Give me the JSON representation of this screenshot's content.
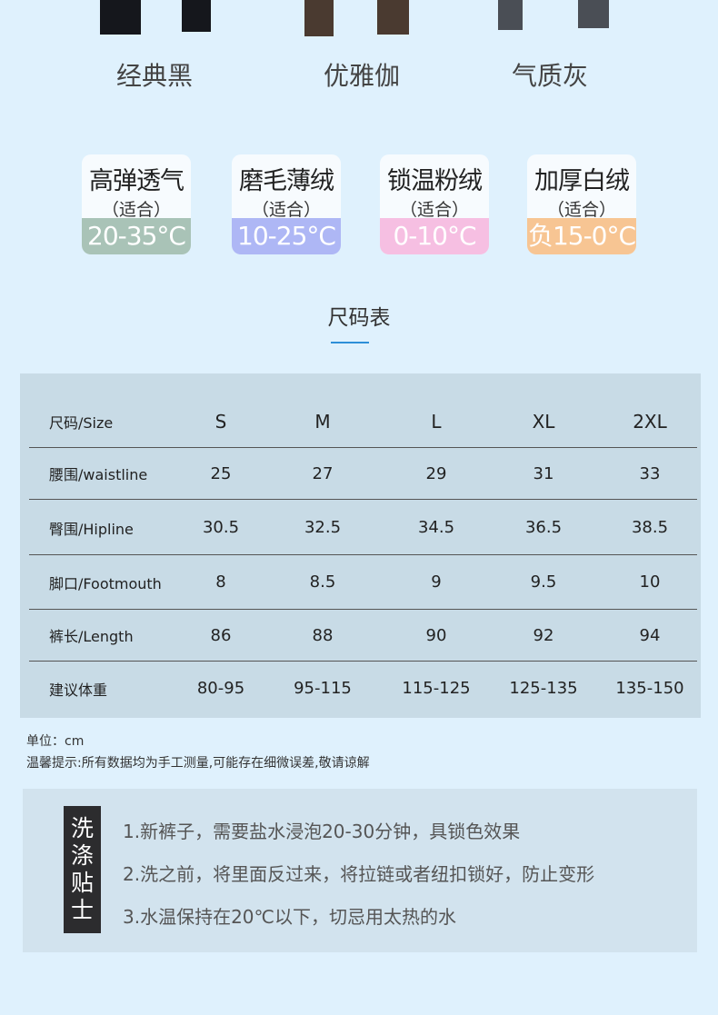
{
  "colors": {
    "background": "#dff1fd",
    "table_bg": "#c8dbe6",
    "accent": "#2d8fd8"
  },
  "variants": [
    {
      "name": "经典黑",
      "color": "#15171c"
    },
    {
      "name": "优雅伽",
      "color": "#4a3a30"
    },
    {
      "name": "气质灰",
      "color": "#4a4e55"
    }
  ],
  "fabrics": [
    {
      "title": "高弹透气",
      "sub": "（适合）",
      "range": "20-35°C",
      "color": "#a9c3b7"
    },
    {
      "title": "磨毛薄绒",
      "sub": "（适合）",
      "range": "10-25°C",
      "color": "#aeb7f5"
    },
    {
      "title": "锁温粉绒",
      "sub": "（适合）",
      "range": "0-10°C",
      "color": "#f6bfe2"
    },
    {
      "title": "加厚白绒",
      "sub": "（适合）",
      "range": "负15-0°C",
      "color": "#f7c593"
    }
  ],
  "size_chart": {
    "title": "尺码表",
    "rows": [
      {
        "label": "尺码/Size",
        "values": [
          "S",
          "M",
          "L",
          "XL",
          "2XL"
        ]
      },
      {
        "label": "腰围/waistline",
        "values": [
          "25",
          "27",
          "29",
          "31",
          "33"
        ]
      },
      {
        "label": "臀围/Hipline",
        "values": [
          "30.5",
          "32.5",
          "34.5",
          "36.5",
          "38.5"
        ]
      },
      {
        "label": "脚口/Footmouth",
        "values": [
          "8",
          "8.5",
          "9",
          "9.5",
          "10"
        ]
      },
      {
        "label": "裤长/Length",
        "values": [
          "86",
          "88",
          "90",
          "92",
          "94"
        ]
      },
      {
        "label": "建议体重",
        "values": [
          "80-95",
          "95-115",
          "115-125",
          "125-135",
          "135-150"
        ]
      }
    ]
  },
  "notes": {
    "unit": "单位：cm",
    "tip": "温馨提示:所有数据均为手工测量,可能存在细微误差,敬请谅解"
  },
  "care": {
    "tag": [
      "洗",
      "涤",
      "贴",
      "士"
    ],
    "lines": [
      "1.新裤子，需要盐水浸泡20-30分钟，具锁色效果",
      "2.洗之前，将里面反过来，将拉链或者纽扣锁好，防止变形",
      "3.水温保持在20℃以下，切忌用太热的水"
    ]
  }
}
